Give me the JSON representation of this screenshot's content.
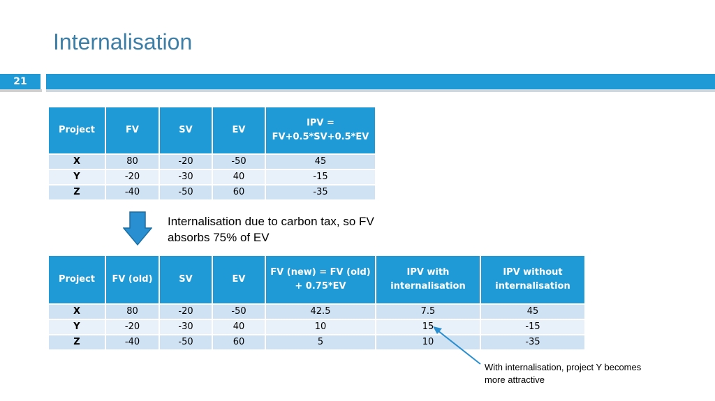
{
  "slide": {
    "title": "Internalisation",
    "number": "21"
  },
  "table1": {
    "headers": [
      "Project",
      "FV",
      "SV",
      "EV",
      "IPV =\nFV+0.5*SV+0.5*EV"
    ],
    "rows": [
      [
        "X",
        "80",
        "-20",
        "-50",
        "45"
      ],
      [
        "Y",
        "-20",
        "-30",
        "40",
        "-15"
      ],
      [
        "Z",
        "-40",
        "-50",
        "60",
        "-35"
      ]
    ]
  },
  "note": "Internalisation due to carbon tax, so FV absorbs 75% of EV",
  "table2": {
    "headers": [
      "Project",
      "FV (old)",
      "SV",
      "EV",
      "FV (new) = FV (old) + 0.75*EV",
      "IPV with internalisation",
      "IPV without internalisation"
    ],
    "rows": [
      [
        "X",
        "80",
        "-20",
        "-50",
        "42.5",
        "7.5",
        "45"
      ],
      [
        "Y",
        "-20",
        "-30",
        "40",
        "10",
        "15",
        "-15"
      ],
      [
        "Z",
        "-40",
        "-50",
        "60",
        "5",
        "10",
        "-35"
      ]
    ]
  },
  "callout": "With internalisation, project Y becomes more attractive",
  "colors": {
    "accent": "#1f9ad6",
    "title": "#3d7ea6",
    "row_odd": "#cfe2f3",
    "row_even": "#e8f1f9"
  },
  "icons": [
    "down-arrow-icon",
    "pointer-arrow-icon"
  ]
}
